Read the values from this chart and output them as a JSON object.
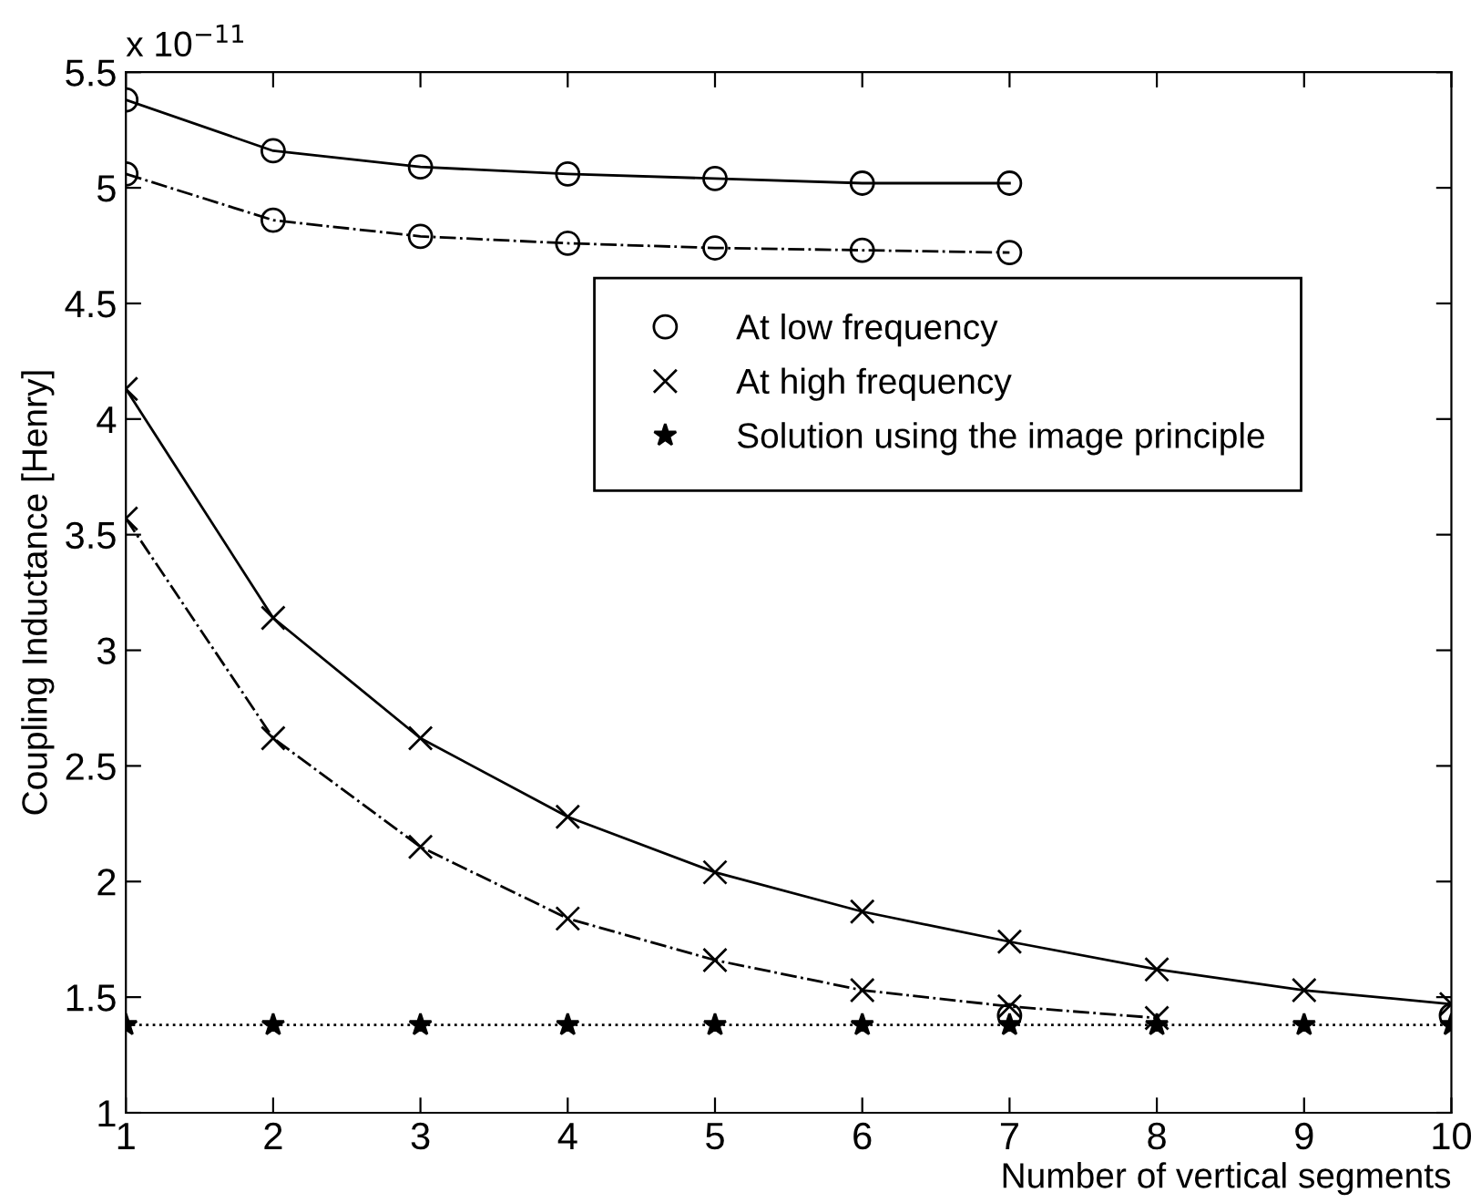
{
  "chart_data": {
    "type": "line",
    "xlabel": "Number of vertical segments",
    "ylabel": "Coupling Inductance [Henry]",
    "annotations": [
      "x 10$^{−11}$"
    ],
    "x": [
      1,
      2,
      3,
      4,
      5,
      6,
      7,
      8,
      9,
      10
    ],
    "series": [
      {
        "name": "At low frequency",
        "color": "#000000",
        "marker": "circle",
        "line_style": "solid",
        "x": [
          1,
          2,
          3,
          4,
          5,
          6,
          7
        ],
        "values": [
          5.38,
          5.16,
          5.09,
          5.06,
          5.04,
          5.02,
          5.02
        ]
      },
      {
        "color": "#000000",
        "marker": "circle",
        "line_style": "dashdot",
        "x": [
          1,
          2,
          3,
          4,
          5,
          6,
          7
        ],
        "values": [
          5.06,
          4.86,
          4.79,
          4.76,
          4.74,
          4.73,
          4.72
        ]
      },
      {
        "type": "scatter",
        "color": "#000000",
        "marker": "circle",
        "x": [
          7,
          10
        ],
        "values": [
          1.42,
          1.42
        ]
      },
      {
        "name": "At high frequency",
        "color": "#000000",
        "marker": "cross",
        "line_style": "solid",
        "values": [
          4.13,
          3.14,
          2.62,
          2.28,
          2.04,
          1.87,
          1.74,
          1.62,
          1.53,
          1.47
        ]
      },
      {
        "color": "#000000",
        "marker": "cross",
        "line_style": "dashdot",
        "x": [
          1,
          2,
          3,
          4,
          5,
          6,
          7,
          8
        ],
        "values": [
          3.57,
          2.62,
          2.15,
          1.84,
          1.66,
          1.53,
          1.46,
          1.41
        ]
      },
      {
        "name": "Solution using the image principle",
        "color": "#000000",
        "marker": "star",
        "line_style": "dotted",
        "values": [
          1.38,
          1.38,
          1.38,
          1.38,
          1.38,
          1.38,
          1.38,
          1.38,
          1.38,
          1.38
        ]
      }
    ],
    "xlim": [
      1,
      10
    ],
    "xticks": [
      1,
      2,
      3,
      4,
      5,
      6,
      7,
      8,
      9,
      10
    ],
    "ylim": [
      1,
      5.5
    ],
    "yticks": [
      1,
      1.5,
      2,
      2.5,
      3,
      3.5,
      4,
      4.5,
      5,
      5.5
    ],
    "legend": "right",
    "grid": false
  }
}
